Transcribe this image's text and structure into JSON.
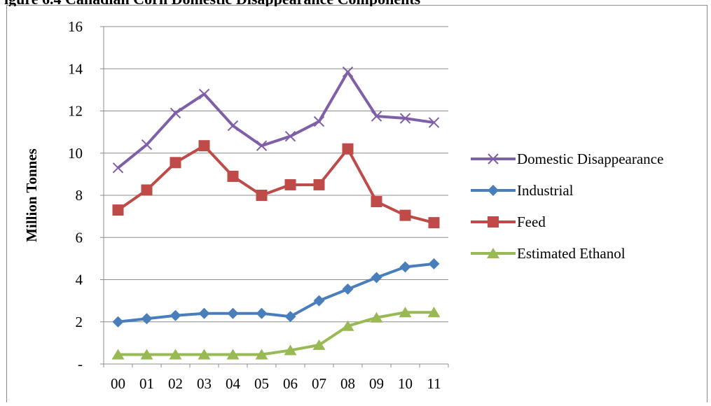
{
  "chart_data": {
    "type": "line",
    "title": "igure 6.4 Canadian Corn Domestic Disappearance Components",
    "xlabel": "",
    "ylabel": "Million Tonnes",
    "categories": [
      "00",
      "01",
      "02",
      "03",
      "04",
      "05",
      "06",
      "07",
      "08",
      "09",
      "10",
      "11"
    ],
    "ylim": [
      0,
      16
    ],
    "yticks": [
      {
        "value": 0,
        "label": "-"
      },
      {
        "value": 2,
        "label": "2"
      },
      {
        "value": 4,
        "label": "4"
      },
      {
        "value": 6,
        "label": "6"
      },
      {
        "value": 8,
        "label": "8"
      },
      {
        "value": 10,
        "label": "10"
      },
      {
        "value": 12,
        "label": "12"
      },
      {
        "value": 14,
        "label": "14"
      },
      {
        "value": 16,
        "label": "16"
      }
    ],
    "grid": "horizontal",
    "legend": "right",
    "series": [
      {
        "name": "Domestic Disappearance",
        "color": "#7f5fa8",
        "marker": "x",
        "values": [
          9.3,
          10.4,
          11.9,
          12.8,
          11.3,
          10.35,
          10.8,
          11.5,
          13.85,
          11.75,
          11.65,
          11.45
        ]
      },
      {
        "name": "Industrial",
        "color": "#4a7ebb",
        "marker": "diamond",
        "values": [
          2.0,
          2.15,
          2.3,
          2.4,
          2.4,
          2.4,
          2.25,
          3.0,
          3.55,
          4.1,
          4.6,
          4.75
        ]
      },
      {
        "name": "Feed",
        "color": "#be4b48",
        "marker": "square",
        "values": [
          7.3,
          8.25,
          9.55,
          10.35,
          8.9,
          8.0,
          8.5,
          8.5,
          10.2,
          7.7,
          7.05,
          6.7
        ]
      },
      {
        "name": "Estimated Ethanol",
        "color": "#98b954",
        "marker": "triangle",
        "values": [
          0.45,
          0.45,
          0.45,
          0.45,
          0.45,
          0.45,
          0.65,
          0.9,
          1.8,
          2.2,
          2.45,
          2.45
        ]
      }
    ]
  }
}
